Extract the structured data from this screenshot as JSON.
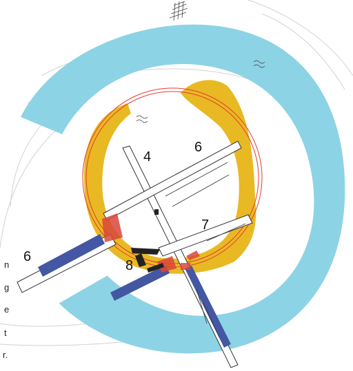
{
  "map": {
    "labels": {
      "trench_4": "4",
      "trench_6_north": "6",
      "trench_6_west": "6",
      "trench_7": "7",
      "trench_8": "8"
    },
    "edge_text": [
      "n",
      "g",
      "e",
      "t",
      "r."
    ],
    "colors": {
      "ditch": "#8dd3e6",
      "bank": "#e8b923",
      "trench_fill": "#4457a3",
      "rampart_line": "#e63b2e",
      "trench_outline": "#333333",
      "feature_red": "#d9473a",
      "contour": "#c9c9c9"
    }
  }
}
